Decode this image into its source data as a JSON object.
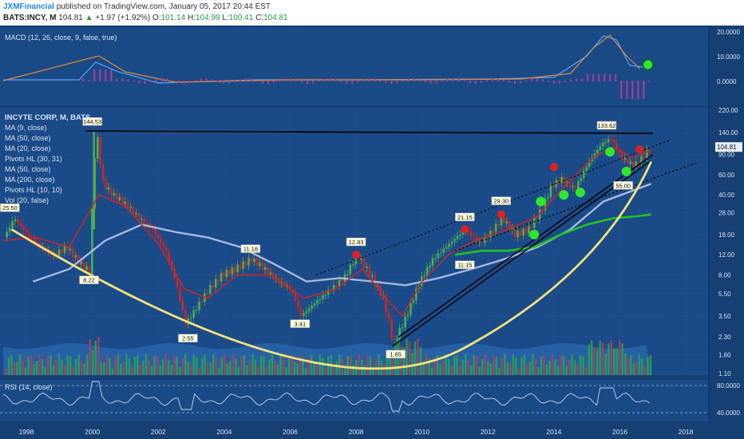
{
  "header": {
    "author": "JXMFinancial",
    "published": "published on TradingView.com, January 05, 2017 20:44 EST",
    "symbol": "BATS:INCY, M",
    "last": "104.81",
    "change_arrow": "▲",
    "change": "+1.97 (+1.92%)",
    "open_label": "O:",
    "open": "101.14",
    "high_label": "H:",
    "high": "104.99",
    "low_label": "L:",
    "low": "100.41",
    "close_label": "C:",
    "close": "104.81"
  },
  "colors": {
    "background": "#163f73",
    "panel_bg": "#1a4a86",
    "grid": "#2d5f9a",
    "text": "#d9e4f2",
    "up_candle": "#4caf50",
    "down_candle": "#c62828",
    "ma9": "#c62828",
    "ma50": "#b8c4e8",
    "ma200": "#22c322",
    "bowl": "#f2e27a",
    "trend": "#000000",
    "dotted": "#000000",
    "macd_line": "#5aa0ff",
    "signal_line": "#e08a3c",
    "hist": "#b23a9a",
    "rsi_line": "#c8d4ea",
    "buy_marker": "#2ee82e",
    "sell_marker": "#e02020"
  },
  "macd": {
    "title": "MACD (12, 26, close, 9, false, true)",
    "ticks": [
      "20.0000",
      "10.0000",
      "0.0000"
    ]
  },
  "main": {
    "legend": [
      "INCYTE CORP, M, BATS",
      "MA (9, close)",
      "MA (50, close)",
      "MA (20, close)",
      "Pivots HL (30, 31)",
      "MA (50, close)",
      "MA (200, close)",
      "Pivots HL (10, 10)",
      "Vol (20, false)"
    ],
    "price_ticks": [
      "220.00",
      "140.00",
      "90.00",
      "60.00",
      "40.00",
      "28.00",
      "18.00",
      "12.00",
      "8.00",
      "5.50",
      "3.50",
      "2.30",
      "1.60",
      "1.10"
    ],
    "last_price_tag": "104.81"
  },
  "rsi": {
    "title": "RSI (14, close)",
    "ticks": [
      "80.0000",
      "40.0000"
    ]
  },
  "time_axis": [
    "1998",
    "2000",
    "2002",
    "2004",
    "2006",
    "2008",
    "2010",
    "2012",
    "2014",
    "2016",
    "2018"
  ],
  "chart_data": {
    "type": "candlestick",
    "title": "INCYTE CORP, M, BATS",
    "scale": "log",
    "ylim": [
      1.1,
      220
    ],
    "xlim": [
      1997.2,
      2018.7
    ],
    "pivot_labels": [
      {
        "date": 2000.0,
        "price": 144.53,
        "text": "144.53",
        "kind": "high"
      },
      {
        "date": 1997.5,
        "price": 25.5,
        "text": "25.50",
        "kind": "high"
      },
      {
        "date": 1999.9,
        "price": 8.22,
        "text": "8.22",
        "kind": "low"
      },
      {
        "date": 2002.9,
        "price": 2.55,
        "text": "2.55",
        "kind": "low"
      },
      {
        "date": 2004.8,
        "price": 11.18,
        "text": "11.18",
        "kind": "high"
      },
      {
        "date": 2006.3,
        "price": 3.41,
        "text": "3.41",
        "kind": "low"
      },
      {
        "date": 2008.0,
        "price": 12.83,
        "text": "12.83",
        "kind": "high"
      },
      {
        "date": 2009.2,
        "price": 1.85,
        "text": "1.85",
        "kind": "low"
      },
      {
        "date": 2011.3,
        "price": 21.15,
        "text": "21.15",
        "kind": "high"
      },
      {
        "date": 2011.3,
        "price": 11.15,
        "text": "11.15",
        "kind": "low"
      },
      {
        "date": 2012.4,
        "price": 29.3,
        "text": "29.30",
        "kind": "high"
      },
      {
        "date": 2015.6,
        "price": 133.62,
        "text": "133.62",
        "kind": "high"
      },
      {
        "date": 2016.1,
        "price": 55.0,
        "text": "55.00",
        "kind": "low"
      }
    ],
    "price_path": [
      [
        1997.3,
        17
      ],
      [
        1997.6,
        25
      ],
      [
        1998.0,
        18
      ],
      [
        1998.4,
        14
      ],
      [
        1998.8,
        12
      ],
      [
        1999.2,
        14
      ],
      [
        1999.6,
        10
      ],
      [
        1999.9,
        8.5
      ],
      [
        2000.0,
        60
      ],
      [
        2000.1,
        140
      ],
      [
        2000.3,
        50
      ],
      [
        2000.6,
        40
      ],
      [
        2001.0,
        33
      ],
      [
        2001.4,
        25
      ],
      [
        2001.8,
        20
      ],
      [
        2002.2,
        13
      ],
      [
        2002.5,
        7
      ],
      [
        2002.8,
        3
      ],
      [
        2003.1,
        4
      ],
      [
        2003.5,
        6
      ],
      [
        2003.9,
        8
      ],
      [
        2004.3,
        9
      ],
      [
        2004.8,
        11
      ],
      [
        2005.2,
        9
      ],
      [
        2005.6,
        7
      ],
      [
        2006.0,
        6
      ],
      [
        2006.3,
        3.5
      ],
      [
        2006.7,
        4.5
      ],
      [
        2007.2,
        6
      ],
      [
        2007.6,
        7.5
      ],
      [
        2008.0,
        12
      ],
      [
        2008.4,
        8
      ],
      [
        2008.8,
        5
      ],
      [
        2009.1,
        2
      ],
      [
        2009.5,
        3.5
      ],
      [
        2009.9,
        7
      ],
      [
        2010.3,
        11
      ],
      [
        2010.7,
        14
      ],
      [
        2011.0,
        17
      ],
      [
        2011.3,
        20
      ],
      [
        2011.7,
        15
      ],
      [
        2012.0,
        18
      ],
      [
        2012.4,
        25
      ],
      [
        2012.8,
        18
      ],
      [
        2013.2,
        20
      ],
      [
        2013.6,
        30
      ],
      [
        2013.9,
        48
      ],
      [
        2014.2,
        55
      ],
      [
        2014.6,
        45
      ],
      [
        2015.0,
        75
      ],
      [
        2015.4,
        110
      ],
      [
        2015.7,
        125
      ],
      [
        2016.0,
        85
      ],
      [
        2016.4,
        72
      ],
      [
        2016.7,
        88
      ],
      [
        2016.95,
        104.81
      ]
    ],
    "ma9": [
      [
        1997.3,
        16
      ],
      [
        1998.3,
        17
      ],
      [
        1999.3,
        14
      ],
      [
        2000.2,
        40
      ],
      [
        2001.0,
        32
      ],
      [
        2002.0,
        15
      ],
      [
        2002.8,
        6
      ],
      [
        2003.5,
        5
      ],
      [
        2004.4,
        8
      ],
      [
        2005.4,
        8
      ],
      [
        2006.4,
        5
      ],
      [
        2007.4,
        6
      ],
      [
        2008.2,
        9
      ],
      [
        2008.9,
        5
      ],
      [
        2009.4,
        3.5
      ],
      [
        2010.0,
        7
      ],
      [
        2010.8,
        12
      ],
      [
        2011.6,
        16
      ],
      [
        2012.6,
        20
      ],
      [
        2013.5,
        26
      ],
      [
        2014.4,
        50
      ],
      [
        2015.2,
        85
      ],
      [
        2015.8,
        105
      ],
      [
        2016.4,
        85
      ],
      [
        2016.95,
        98
      ]
    ],
    "ma50": [
      [
        1998.2,
        7
      ],
      [
        1999.3,
        9
      ],
      [
        2000.4,
        16
      ],
      [
        2001.5,
        22
      ],
      [
        2002.5,
        19
      ],
      [
        2003.5,
        17
      ],
      [
        2004.5,
        14
      ],
      [
        2005.5,
        10
      ],
      [
        2006.5,
        7
      ],
      [
        2007.5,
        7.5
      ],
      [
        2008.5,
        7
      ],
      [
        2009.5,
        6.5
      ],
      [
        2010.5,
        7.5
      ],
      [
        2011.5,
        9
      ],
      [
        2012.5,
        11
      ],
      [
        2013.5,
        14
      ],
      [
        2014.5,
        20
      ],
      [
        2015.5,
        35
      ],
      [
        2016.95,
        50
      ]
    ],
    "ma200": [
      [
        2011.0,
        12
      ],
      [
        2011.8,
        13
      ],
      [
        2012.6,
        13
      ],
      [
        2013.4,
        14
      ],
      [
        2014.2,
        18
      ],
      [
        2015.0,
        22
      ],
      [
        2015.8,
        25
      ],
      [
        2016.5,
        26
      ],
      [
        2016.95,
        27
      ]
    ],
    "resistance_line": [
      [
        1999.8,
        144.53
      ],
      [
        2017.0,
        138
      ]
    ],
    "support_lines": [
      [
        [
          2009.1,
          1.9
        ],
        [
          2016.9,
          78
        ]
      ],
      [
        [
          2009.3,
          2.3
        ],
        [
          2017.0,
          90
        ]
      ]
    ],
    "channel_dotted": [
      [
        [
          2006.8,
          8.0
        ],
        [
          2017.5,
          120
        ]
      ],
      [
        [
          2011.0,
          13
        ],
        [
          2018.4,
          78
        ]
      ]
    ],
    "buy_signals": [
      [
        2013.4,
        18
      ],
      [
        2013.6,
        35
      ],
      [
        2014.3,
        40
      ],
      [
        2014.8,
        42
      ],
      [
        2015.7,
        95
      ],
      [
        2016.2,
        64
      ]
    ],
    "sell_signals": [
      [
        2008.0,
        12
      ],
      [
        2011.3,
        20
      ],
      [
        2012.4,
        27
      ],
      [
        2014.0,
        70
      ],
      [
        2016.6,
        100
      ]
    ],
    "rsi_band": [
      80,
      40
    ]
  }
}
